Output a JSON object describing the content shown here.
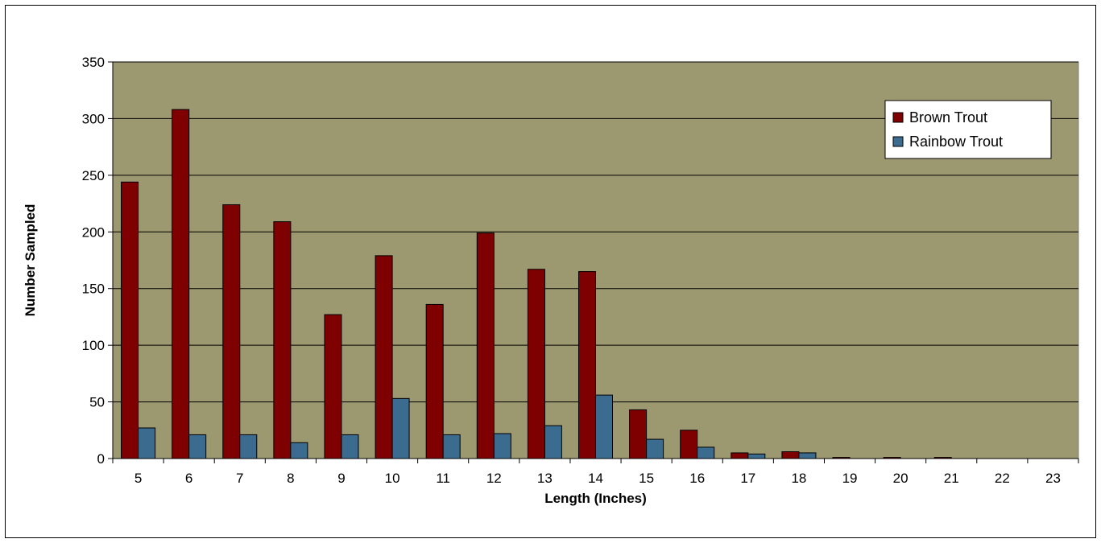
{
  "chart_data": {
    "type": "bar",
    "title": "",
    "xlabel": "Length (Inches)",
    "ylabel": "Number Sampled",
    "ylim": [
      0,
      350
    ],
    "yticks": [
      0,
      50,
      100,
      150,
      200,
      250,
      300,
      350
    ],
    "grid": true,
    "legend_position": "top-right",
    "plot_background": "#9c9870",
    "categories": [
      "5",
      "6",
      "7",
      "8",
      "9",
      "10",
      "11",
      "12",
      "13",
      "14",
      "15",
      "16",
      "17",
      "18",
      "19",
      "20",
      "21",
      "22",
      "23"
    ],
    "series": [
      {
        "name": "Brown Trout",
        "color": "#7f0000",
        "values": [
          244,
          308,
          224,
          209,
          127,
          179,
          136,
          199,
          167,
          165,
          43,
          25,
          5,
          6,
          1,
          1,
          1,
          0,
          0
        ]
      },
      {
        "name": "Rainbow Trout",
        "color": "#3b6b8e",
        "values": [
          27,
          21,
          21,
          14,
          21,
          53,
          21,
          22,
          29,
          56,
          17,
          10,
          4,
          5,
          0,
          0,
          0,
          0,
          0
        ]
      }
    ]
  }
}
